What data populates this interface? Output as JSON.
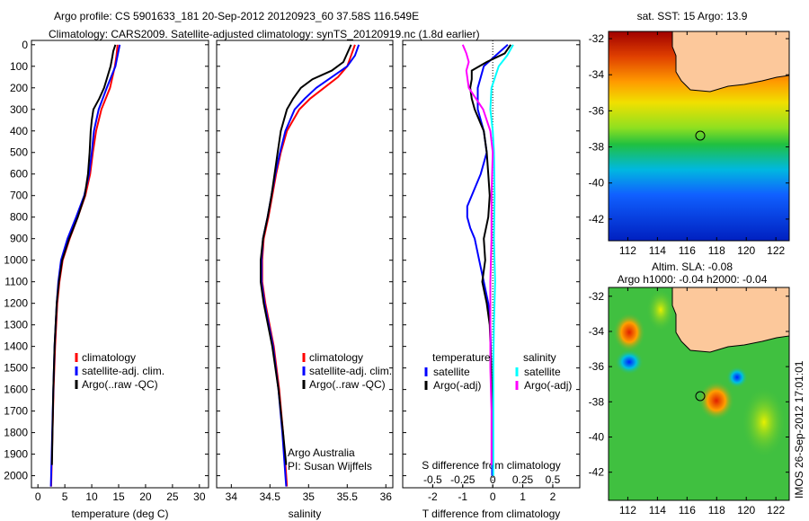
{
  "title_line1": "Argo profile: CS 5901633_181 20-Sep-2012 20120923_60 37.58S 116.549E",
  "title_line2": "Climatology: CARS2009. Satellite-adjusted climatology: synTS_20120919.nc (1.8d earlier)",
  "footer_stamp": "IMOS 26-Sep-2012 17:01:01",
  "chart_data": [
    {
      "type": "line",
      "id": "temperature",
      "xlabel": "temperature (deg C)",
      "xlim": [
        -1.2,
        31.7
      ],
      "xticks": [
        0,
        5,
        10,
        15,
        20,
        25,
        30
      ],
      "ylim": [
        -20,
        2056
      ],
      "yticks": [
        0,
        100,
        200,
        300,
        400,
        500,
        600,
        700,
        800,
        900,
        1000,
        1100,
        1200,
        1300,
        1400,
        1500,
        1600,
        1700,
        1800,
        1900,
        2000
      ],
      "legend": [
        "climatology",
        "satellite-adj. clim.",
        "Argo(..raw -QC)"
      ],
      "series": [
        {
          "name": "climatology",
          "color": "#ff0000",
          "depth": [
            0,
            50,
            100,
            200,
            300,
            400,
            500,
            600,
            700,
            800,
            900,
            1000,
            1100,
            1200,
            1400,
            1600,
            1800,
            2000,
            2050
          ],
          "values": [
            14.8,
            14.6,
            14.3,
            13.4,
            11.8,
            10.8,
            10.2,
            9.7,
            8.8,
            7.4,
            5.9,
            4.6,
            4.0,
            3.6,
            3.2,
            2.9,
            2.7,
            2.5,
            2.45
          ]
        },
        {
          "name": "satellite-adj. clim.",
          "color": "#0000ff",
          "depth": [
            0,
            50,
            100,
            200,
            300,
            400,
            500,
            600,
            700,
            800,
            900,
            1000,
            1100,
            1200,
            1400,
            1600,
            1800,
            2000,
            2050
          ],
          "values": [
            15.2,
            14.8,
            14.4,
            12.8,
            11.3,
            10.4,
            10.0,
            9.5,
            8.6,
            7.1,
            5.5,
            4.3,
            3.8,
            3.5,
            3.1,
            2.85,
            2.65,
            2.45,
            2.4
          ]
        },
        {
          "name": "Argo(..raw -QC)",
          "color": "#000000",
          "depth": [
            0,
            30,
            60,
            100,
            150,
            200,
            250,
            300,
            350,
            400,
            500,
            600,
            700,
            800,
            900,
            1000,
            1100,
            1200,
            1400,
            1600,
            1800,
            1950
          ],
          "values": [
            14.4,
            14.0,
            13.8,
            13.5,
            12.9,
            12.3,
            11.4,
            10.3,
            10.0,
            9.8,
            9.6,
            9.3,
            8.7,
            7.4,
            5.8,
            4.5,
            3.9,
            3.5,
            3.1,
            2.85,
            2.7,
            2.6
          ]
        }
      ]
    },
    {
      "type": "line",
      "id": "salinity",
      "xlabel": "salinity",
      "xlim": [
        33.81,
        36.09
      ],
      "xticks": [
        34,
        34.5,
        35,
        35.5,
        36
      ],
      "ylim": [
        -20,
        2056
      ],
      "legend": [
        "climatology",
        "satellite-adj. clim.",
        "Argo(..raw -QC)"
      ],
      "annotations": [
        "Argo Australia",
        "PI: Susan Wijffels"
      ],
      "series": [
        {
          "name": "climatology",
          "color": "#ff0000",
          "depth": [
            0,
            50,
            100,
            150,
            200,
            250,
            300,
            400,
            500,
            600,
            700,
            800,
            900,
            1000,
            1100,
            1200,
            1400,
            1600,
            1800,
            2000,
            2050
          ],
          "values": [
            35.6,
            35.55,
            35.5,
            35.38,
            35.2,
            35.02,
            34.88,
            34.72,
            34.64,
            34.58,
            34.53,
            34.48,
            34.42,
            34.4,
            34.4,
            34.44,
            34.55,
            34.62,
            34.67,
            34.71,
            34.72
          ]
        },
        {
          "name": "satellite-adj. clim.",
          "color": "#0000ff",
          "depth": [
            0,
            50,
            100,
            150,
            200,
            250,
            300,
            400,
            500,
            600,
            700,
            800,
            900,
            1000,
            1100,
            1200,
            1400,
            1600,
            1800,
            2000,
            2050
          ],
          "values": [
            35.65,
            35.6,
            35.5,
            35.3,
            35.1,
            34.95,
            34.82,
            34.7,
            34.63,
            34.57,
            34.52,
            34.47,
            34.41,
            34.39,
            34.39,
            34.43,
            34.54,
            34.61,
            34.66,
            34.7,
            34.71
          ]
        },
        {
          "name": "Argo(..raw -QC)",
          "color": "#000000",
          "depth": [
            0,
            40,
            80,
            120,
            160,
            200,
            250,
            300,
            350,
            400,
            500,
            600,
            700,
            800,
            900,
            1000,
            1100,
            1200,
            1400,
            1600,
            1800,
            1950
          ],
          "values": [
            35.55,
            35.5,
            35.45,
            35.3,
            35.05,
            34.9,
            34.8,
            34.72,
            34.68,
            34.64,
            34.6,
            34.56,
            34.52,
            34.47,
            34.41,
            34.38,
            34.38,
            34.42,
            34.53,
            34.61,
            34.67,
            34.71
          ]
        }
      ]
    },
    {
      "type": "line",
      "id": "difference",
      "xlabel": "T difference from climatology",
      "xlabel_top": "S difference from climatology",
      "xlim": [
        -3.0,
        2.9
      ],
      "xticks": [
        -2,
        -1,
        0,
        1,
        2
      ],
      "xticks_top": [
        -0.5,
        -0.25,
        0,
        0.25,
        0.5
      ],
      "xtick_labels_top": [
        "-0.5",
        "-0.25",
        "0",
        "0.25",
        "0.5"
      ],
      "ylim": [
        -20,
        2056
      ],
      "legend_titles": [
        "temperature",
        "salinity"
      ],
      "legend": [
        "satellite",
        "Argo(-adj)",
        "satellite",
        "Argo(-adj)"
      ],
      "series": [
        {
          "name": "temperature satellite",
          "color": "#0000ff",
          "axis": "T",
          "depth": [
            0,
            50,
            100,
            200,
            300,
            400,
            500,
            600,
            700,
            750,
            800,
            850,
            900,
            1000,
            1100,
            1200,
            1300,
            1500,
            1700,
            2000
          ],
          "values": [
            0.5,
            0.1,
            -0.3,
            -0.5,
            -0.5,
            -0.3,
            -0.2,
            -0.4,
            -0.7,
            -0.85,
            -0.85,
            -0.75,
            -0.6,
            -0.45,
            -0.3,
            -0.15,
            -0.08,
            -0.05,
            -0.03,
            -0.02
          ]
        },
        {
          "name": "temperature Argo(-adj)",
          "color": "#000000",
          "axis": "T",
          "depth": [
            0,
            40,
            80,
            120,
            160,
            200,
            250,
            300,
            400,
            500,
            600,
            700,
            800,
            900,
            1000,
            1100,
            1200,
            1300,
            1500,
            1700,
            1950
          ],
          "values": [
            0.6,
            0.4,
            -0.2,
            -0.7,
            -0.7,
            -0.75,
            -0.7,
            -0.6,
            -0.3,
            -0.2,
            -0.15,
            -0.1,
            -0.15,
            -0.3,
            -0.25,
            -0.35,
            -0.2,
            -0.1,
            -0.05,
            -0.02,
            -0.02
          ]
        },
        {
          "name": "salinity satellite",
          "color": "#00ffff",
          "axis": "S",
          "depth": [
            0,
            50,
            100,
            200,
            300,
            400,
            500,
            700,
            900,
            1100,
            1300,
            1500,
            1700,
            2000
          ],
          "values": [
            0.17,
            0.12,
            0.05,
            -0.01,
            -0.02,
            0.0,
            0.01,
            0.015,
            0.01,
            0.02,
            0.01,
            0.005,
            0.005,
            0.005
          ]
        },
        {
          "name": "salinity Argo(-adj)",
          "color": "#ff00ff",
          "axis": "S",
          "depth": [
            0,
            40,
            80,
            120,
            200,
            300,
            400,
            500,
            700,
            900,
            1100,
            1300,
            1500,
            1700,
            1950
          ],
          "values": [
            -0.25,
            -0.22,
            -0.2,
            -0.22,
            -0.2,
            -0.08,
            -0.02,
            0.0,
            -0.01,
            -0.01,
            -0.02,
            -0.02,
            -0.02,
            -0.01,
            -0.01
          ]
        }
      ]
    },
    {
      "type": "heatmap",
      "id": "sst-map",
      "title": "sat. SST: 15 Argo: 13.9",
      "xticks": [
        112,
        114,
        116,
        118,
        120,
        122
      ],
      "yticks": [
        -32,
        -34,
        -36,
        -38,
        -40,
        -42
      ],
      "xlim": [
        110.7,
        122.9
      ],
      "ylim": [
        -43.2,
        -31.6
      ],
      "argo_position": [
        116.549,
        -37.58
      ]
    },
    {
      "type": "heatmap",
      "id": "sla-map",
      "title": "Altim. SLA: -0.08",
      "subtitle": "Argo h1000: -0.04 h2000: -0.04",
      "xticks": [
        112,
        114,
        116,
        118,
        120,
        122
      ],
      "yticks": [
        -32,
        -34,
        -36,
        -38,
        -40,
        -42
      ],
      "xlim": [
        110.7,
        122.9
      ],
      "ylim": [
        -43.6,
        -31.5
      ],
      "argo_position": [
        116.549,
        -37.58
      ]
    }
  ]
}
